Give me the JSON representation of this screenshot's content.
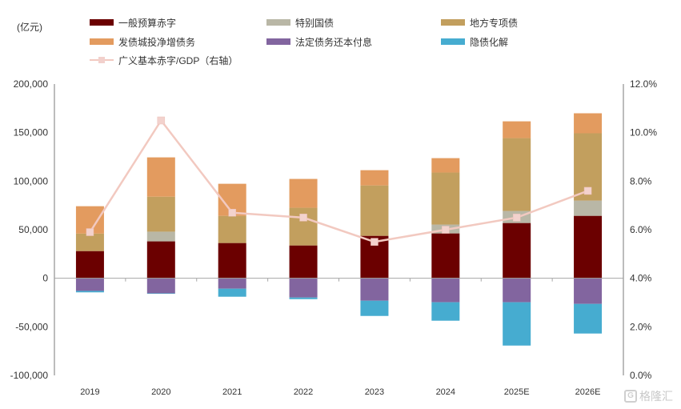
{
  "chart_data": {
    "type": "bar",
    "stacked": true,
    "title": "",
    "unit_label": "(亿元)",
    "xlabel": "",
    "ylabel": "亿元",
    "categories": [
      "2019",
      "2020",
      "2021",
      "2022",
      "2023",
      "2024",
      "2025E",
      "2026E"
    ],
    "ylim": [
      -100000,
      200000
    ],
    "yticks": [
      200000,
      150000,
      100000,
      50000,
      0,
      -50000,
      -100000
    ],
    "ytick_labels": [
      "200,000",
      "150,000",
      "100,000",
      "50,000",
      "0",
      "-50,000",
      "-100,000"
    ],
    "y2lim": [
      0,
      12
    ],
    "y2ticks": [
      12,
      10,
      8,
      6,
      4,
      2,
      0
    ],
    "y2tick_labels": [
      "12.0%",
      "10.0%",
      "8.0%",
      "6.0%",
      "4.0%",
      "2.0%",
      "0.0%"
    ],
    "grid": false,
    "legend_position": "top",
    "series": [
      {
        "name": "一般预算赤字",
        "color": "#6b0000",
        "axis": "left",
        "kind": "bar",
        "values": [
          28000,
          38000,
          36300,
          33800,
          43700,
          46200,
          56900,
          64300
        ]
      },
      {
        "name": "特别国债",
        "color": "#b9b7a6",
        "axis": "left",
        "kind": "bar",
        "values": [
          0,
          10000,
          0,
          0,
          0,
          9100,
          12400,
          15700
        ]
      },
      {
        "name": "地方专项债",
        "color": "#c29f5e",
        "axis": "left",
        "kind": "bar",
        "values": [
          18000,
          36000,
          28000,
          38800,
          51900,
          53600,
          75000,
          69300
        ]
      },
      {
        "name": "发债城投净增债务",
        "color": "#e39b5f",
        "axis": "left",
        "kind": "bar",
        "values": [
          28200,
          40500,
          33000,
          29700,
          15700,
          14800,
          17300,
          20600
        ]
      },
      {
        "name": "法定债务还本付息",
        "color": "#82659f",
        "axis": "left",
        "kind": "bar",
        "values": [
          -13000,
          -15500,
          -10700,
          -19800,
          -23100,
          -24700,
          -24700,
          -26400
        ]
      },
      {
        "name": "隐债化解",
        "color": "#46acd0",
        "axis": "left",
        "kind": "bar",
        "values": [
          -1500,
          -500,
          -8300,
          -1700,
          -15700,
          -19000,
          -44600,
          -30500
        ]
      },
      {
        "name": "广义基本赤字/GDP（右轴）",
        "color": "#f2c9c0",
        "axis": "right",
        "kind": "line",
        "values": [
          5.9,
          10.5,
          6.7,
          6.5,
          5.5,
          6.0,
          6.5,
          7.6
        ]
      }
    ]
  },
  "watermark": {
    "text": "格隆汇",
    "logo_glyph": "G"
  }
}
